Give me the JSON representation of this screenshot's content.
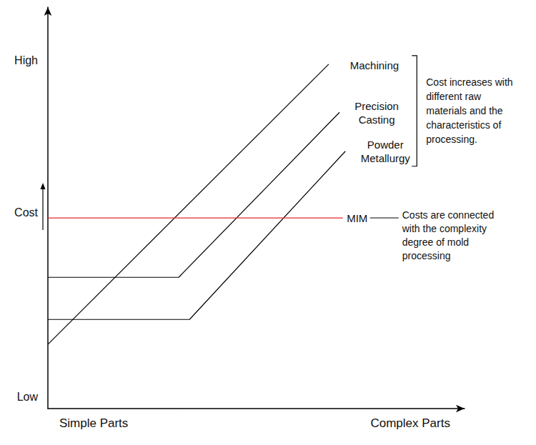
{
  "chart_data": {
    "type": "line",
    "xlim": [
      0,
      100
    ],
    "ylim": [
      0,
      100
    ],
    "xticks": [
      {
        "value": 11,
        "label": "Simple Parts"
      },
      {
        "value": 87,
        "label": "Complex Parts"
      }
    ],
    "yticks": [
      {
        "value": 3,
        "label": "Low"
      },
      {
        "value": 48.9,
        "label": "Cost"
      },
      {
        "value": 86.7,
        "label": "High"
      }
    ],
    "grid": false,
    "series": [
      {
        "name": "Machining",
        "color": "#000000",
        "x": [
          0,
          67.4
        ],
        "values": [
          16.0,
          85.8
        ]
      },
      {
        "name": "Precision Casting",
        "color": "#000000",
        "x": [
          0,
          31.4,
          70.0
        ],
        "values": [
          32.7,
          32.7,
          73.8
        ]
      },
      {
        "name": "Powder Metallurgy",
        "color": "#000000",
        "x": [
          0,
          34.0,
          71.4
        ],
        "values": [
          22.2,
          22.2,
          64.1
        ]
      },
      {
        "name": "MIM",
        "color": "#e8262a",
        "x": [
          0,
          70.8
        ],
        "values": [
          47.5,
          47.5
        ]
      }
    ],
    "annotations": [
      {
        "text": "Cost increases with different raw materials and the characteristics of processing.",
        "refers_to": [
          "Machining",
          "Precision Casting",
          "Powder Metallurgy"
        ]
      },
      {
        "text": "Costs are connected with the complexity degree of mold processing",
        "refers_to": [
          "MIM"
        ]
      }
    ]
  }
}
